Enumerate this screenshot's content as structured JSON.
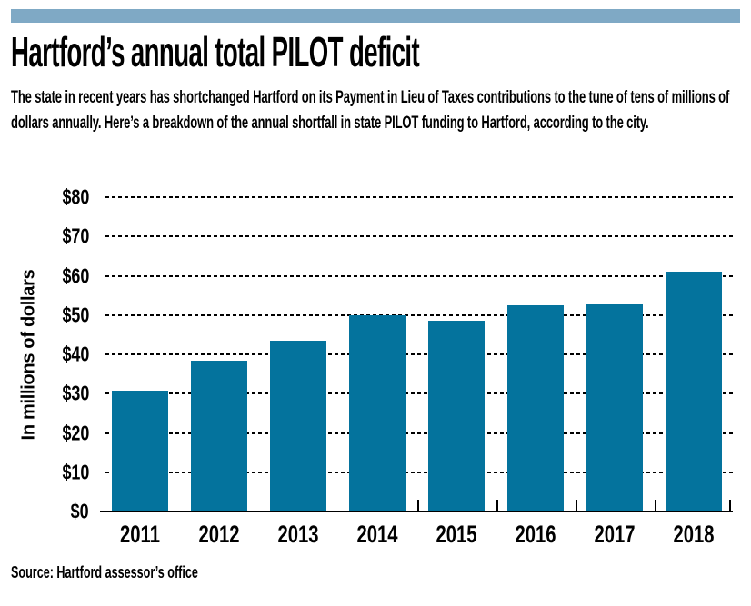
{
  "header": {
    "title": "Hartford’s annual total PILOT deficit",
    "description": "The state in recent years has shortchanged Hartford on its Payment in Lieu of Taxes contributions to the tune of tens of millions of dollars annually. Here’s a breakdown of the annual shortfall in state PILOT funding to Hartford, according to the city.",
    "accent_color": "#7fa9c5"
  },
  "chart_data": {
    "type": "bar",
    "title": "Hartford’s annual total PILOT deficit",
    "categories": [
      "2011",
      "2012",
      "2013",
      "2014",
      "2015",
      "2016",
      "2017",
      "2018"
    ],
    "values": [
      30.8,
      38.4,
      43.5,
      49.9,
      48.5,
      52.4,
      52.7,
      61
    ],
    "xlabel": "",
    "ylabel": "In millions of dollars",
    "ylim": [
      0,
      80
    ],
    "y_ticks": [
      {
        "value": 0,
        "label": "$0"
      },
      {
        "value": 10,
        "label": "$10"
      },
      {
        "value": 20,
        "label": "$20"
      },
      {
        "value": 30,
        "label": "$30"
      },
      {
        "value": 40,
        "label": "$40"
      },
      {
        "value": 50,
        "label": "$50"
      },
      {
        "value": 60,
        "label": "$60"
      },
      {
        "value": 70,
        "label": "$70"
      },
      {
        "value": 80,
        "label": "$80"
      }
    ],
    "bar_color": "#04739d",
    "grid": "horizontal-dashed",
    "legend": "none"
  },
  "source": "Source: Hartford assessor’s office"
}
